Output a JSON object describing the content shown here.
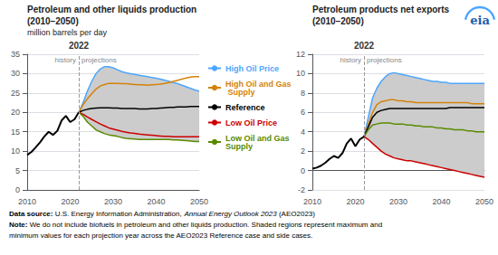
{
  "chart_data": [
    {
      "type": "line",
      "title": "Petroleum and other liquids production",
      "subtitle": "(2010–2050)",
      "ylabel": "million barrels per day",
      "xlim": [
        2010,
        2050
      ],
      "xticks": [
        2010,
        2020,
        2030,
        2040,
        2050
      ],
      "ylim": [
        0,
        35
      ],
      "yticks": [
        0,
        5,
        10,
        15,
        20,
        25,
        30,
        35
      ],
      "grid": true,
      "shade": {
        "color": "#CCCCCC",
        "between": [
          "High Oil Price",
          "Low Oil and Gas Supply"
        ]
      },
      "vline": {
        "x": 2022,
        "label": "2022",
        "left_label": "history",
        "right_label": "projections",
        "color": "#999999",
        "line_style": "dashed"
      },
      "series": [
        {
          "name": "High Oil Price",
          "color": "#4DA6FF",
          "x": [
            2022,
            2023,
            2024,
            2025,
            2026,
            2027,
            2028,
            2029,
            2030,
            2031,
            2032,
            2033,
            2034,
            2035,
            2036,
            2037,
            2038,
            2039,
            2040,
            2041,
            2042,
            2043,
            2044,
            2045,
            2046,
            2047,
            2048,
            2049,
            2050
          ],
          "values": [
            20.0,
            22.5,
            25.5,
            28.0,
            30.0,
            31.2,
            31.8,
            31.8,
            31.5,
            31.0,
            30.5,
            30.2,
            30.0,
            29.8,
            29.6,
            29.4,
            29.2,
            29.0,
            28.8,
            28.6,
            28.3,
            28.0,
            27.7,
            27.4,
            27.0,
            26.6,
            26.2,
            25.8,
            25.5
          ]
        },
        {
          "name": "High Oil and Gas Supply",
          "color": "#D4820A",
          "x": [
            2022,
            2023,
            2024,
            2025,
            2026,
            2027,
            2028,
            2029,
            2030,
            2031,
            2032,
            2033,
            2034,
            2035,
            2036,
            2037,
            2038,
            2039,
            2040,
            2041,
            2042,
            2043,
            2044,
            2045,
            2046,
            2047,
            2048,
            2049,
            2050
          ],
          "values": [
            20.0,
            22.0,
            23.5,
            24.8,
            26.0,
            26.8,
            27.2,
            27.5,
            27.5,
            27.5,
            27.4,
            27.4,
            27.3,
            27.2,
            27.1,
            27.1,
            27.0,
            27.1,
            27.2,
            27.3,
            27.5,
            27.7,
            28.0,
            28.3,
            28.6,
            28.9,
            29.1,
            29.2,
            29.2
          ]
        },
        {
          "name": "Reference",
          "color": "#000000",
          "x": [
            2022,
            2023,
            2024,
            2025,
            2026,
            2027,
            2028,
            2029,
            2030,
            2031,
            2032,
            2033,
            2034,
            2035,
            2036,
            2037,
            2038,
            2039,
            2040,
            2041,
            2042,
            2043,
            2044,
            2045,
            2046,
            2047,
            2048,
            2049,
            2050
          ],
          "values": [
            20.0,
            20.5,
            20.8,
            21.0,
            21.1,
            21.2,
            21.2,
            21.2,
            21.1,
            21.1,
            21.0,
            21.0,
            21.0,
            21.0,
            20.9,
            20.9,
            20.9,
            21.0,
            21.0,
            21.1,
            21.2,
            21.3,
            21.3,
            21.4,
            21.4,
            21.4,
            21.5,
            21.5,
            21.5
          ]
        },
        {
          "name": "Low Oil Price",
          "color": "#CC0000",
          "x": [
            2022,
            2023,
            2024,
            2025,
            2026,
            2027,
            2028,
            2029,
            2030,
            2031,
            2032,
            2033,
            2034,
            2035,
            2036,
            2037,
            2038,
            2039,
            2040,
            2041,
            2042,
            2043,
            2044,
            2045,
            2046,
            2047,
            2048,
            2049,
            2050
          ],
          "values": [
            20.0,
            19.5,
            18.8,
            18.2,
            17.6,
            17.0,
            16.5,
            16.0,
            15.7,
            15.4,
            15.1,
            14.9,
            14.7,
            14.6,
            14.4,
            14.3,
            14.2,
            14.1,
            14.0,
            13.9,
            13.8,
            13.8,
            13.7,
            13.7,
            13.7,
            13.7,
            13.7,
            13.7,
            13.7
          ]
        },
        {
          "name": "Low Oil and Gas Supply",
          "color": "#5A8A00",
          "x": [
            2022,
            2023,
            2024,
            2025,
            2026,
            2027,
            2028,
            2029,
            2030,
            2031,
            2032,
            2033,
            2034,
            2035,
            2036,
            2037,
            2038,
            2039,
            2040,
            2041,
            2042,
            2043,
            2044,
            2045,
            2046,
            2047,
            2048,
            2049,
            2050
          ],
          "values": [
            20.0,
            19.0,
            17.5,
            16.5,
            15.5,
            15.0,
            14.5,
            14.2,
            14.0,
            13.8,
            13.5,
            13.3,
            13.2,
            13.1,
            13.0,
            13.0,
            13.0,
            13.0,
            13.0,
            13.0,
            13.0,
            13.0,
            12.9,
            12.9,
            12.8,
            12.7,
            12.6,
            12.5,
            12.5
          ]
        },
        {
          "color": "#000000",
          "x": [
            2010,
            2011,
            2012,
            2013,
            2014,
            2015,
            2016,
            2017,
            2018,
            2019,
            2020,
            2021,
            2022
          ],
          "values": [
            9.0,
            9.8,
            11.0,
            12.3,
            13.8,
            15.0,
            14.2,
            15.2,
            17.9,
            19.1,
            17.5,
            18.2,
            20.0
          ]
        }
      ]
    },
    {
      "type": "line",
      "title": "Petroleum products net exports",
      "subtitle": "(2010–2050)",
      "xlim": [
        2010,
        2050
      ],
      "xticks": [
        2010,
        2020,
        2030,
        2040,
        2050
      ],
      "ylim": [
        -2,
        12
      ],
      "yticks": [
        -2,
        0,
        2,
        4,
        6,
        8,
        10,
        12
      ],
      "grid": true,
      "shade": {
        "color": "#CCCCCC",
        "between": [
          "High Oil Price",
          "Low Oil Price"
        ]
      },
      "vline": {
        "x": 2022,
        "label": "2022",
        "left_label": "history",
        "right_label": "projections",
        "color": "#999999",
        "line_style": "dashed"
      },
      "series": [
        {
          "name": "High Oil Price",
          "color": "#4DA6FF",
          "x": [
            2022,
            2023,
            2024,
            2025,
            2026,
            2027,
            2028,
            2029,
            2030,
            2031,
            2032,
            2033,
            2034,
            2035,
            2036,
            2037,
            2038,
            2039,
            2040,
            2041,
            2042,
            2043,
            2044,
            2045,
            2046,
            2047,
            2048,
            2049,
            2050
          ],
          "values": [
            3.5,
            5.5,
            7.5,
            8.5,
            9.2,
            9.7,
            10.0,
            10.1,
            10.0,
            9.9,
            9.8,
            9.7,
            9.6,
            9.5,
            9.4,
            9.3,
            9.2,
            9.2,
            9.1,
            9.1,
            9.0,
            9.0,
            9.0,
            9.0,
            9.0,
            9.0,
            9.0,
            9.0,
            9.0
          ]
        },
        {
          "name": "High Oil and Gas Supply",
          "color": "#D4820A",
          "x": [
            2022,
            2023,
            2024,
            2025,
            2026,
            2027,
            2028,
            2029,
            2030,
            2031,
            2032,
            2033,
            2034,
            2035,
            2036,
            2037,
            2038,
            2039,
            2040,
            2041,
            2042,
            2043,
            2044,
            2045,
            2046,
            2047,
            2048,
            2049,
            2050
          ],
          "values": [
            3.5,
            4.8,
            6.0,
            6.8,
            7.1,
            7.2,
            7.3,
            7.3,
            7.2,
            7.2,
            7.1,
            7.1,
            7.0,
            7.0,
            7.0,
            7.0,
            7.0,
            7.0,
            7.0,
            7.0,
            7.0,
            7.0,
            7.0,
            7.0,
            7.0,
            6.9,
            6.9,
            6.9,
            6.9
          ]
        },
        {
          "name": "Reference",
          "color": "#000000",
          "x": [
            2022,
            2023,
            2024,
            2025,
            2026,
            2027,
            2028,
            2029,
            2030,
            2031,
            2032,
            2033,
            2034,
            2035,
            2036,
            2037,
            2038,
            2039,
            2040,
            2041,
            2042,
            2043,
            2044,
            2045,
            2046,
            2047,
            2048,
            2049,
            2050
          ],
          "values": [
            3.5,
            4.5,
            5.5,
            6.0,
            6.2,
            6.3,
            6.4,
            6.4,
            6.4,
            6.4,
            6.4,
            6.4,
            6.4,
            6.4,
            6.4,
            6.4,
            6.4,
            6.4,
            6.4,
            6.4,
            6.5,
            6.5,
            6.5,
            6.5,
            6.5,
            6.5,
            6.5,
            6.5,
            6.5
          ]
        },
        {
          "name": "Low Oil and Gas Supply",
          "color": "#5A8A00",
          "x": [
            2022,
            2023,
            2024,
            2025,
            2026,
            2027,
            2028,
            2029,
            2030,
            2031,
            2032,
            2033,
            2034,
            2035,
            2036,
            2037,
            2038,
            2039,
            2040,
            2041,
            2042,
            2043,
            2044,
            2045,
            2046,
            2047,
            2048,
            2049,
            2050
          ],
          "values": [
            3.5,
            4.2,
            4.7,
            4.8,
            4.9,
            4.9,
            4.9,
            4.8,
            4.8,
            4.8,
            4.7,
            4.7,
            4.6,
            4.6,
            4.5,
            4.5,
            4.5,
            4.4,
            4.4,
            4.3,
            4.3,
            4.2,
            4.2,
            4.2,
            4.1,
            4.1,
            4.0,
            4.0,
            4.0
          ]
        },
        {
          "name": "Low Oil Price",
          "color": "#CC0000",
          "x": [
            2022,
            2023,
            2024,
            2025,
            2026,
            2027,
            2028,
            2029,
            2030,
            2031,
            2032,
            2033,
            2034,
            2035,
            2036,
            2037,
            2038,
            2039,
            2040,
            2041,
            2042,
            2043,
            2044,
            2045,
            2046,
            2047,
            2048,
            2049,
            2050
          ],
          "values": [
            3.5,
            3.2,
            2.8,
            2.4,
            2.0,
            1.7,
            1.5,
            1.3,
            1.2,
            1.1,
            1.0,
            1.0,
            0.9,
            0.8,
            0.7,
            0.6,
            0.5,
            0.4,
            0.3,
            0.2,
            0.1,
            0.0,
            -0.1,
            -0.2,
            -0.3,
            -0.4,
            -0.5,
            -0.6,
            -0.7
          ]
        },
        {
          "color": "#000000",
          "x": [
            2010,
            2011,
            2012,
            2013,
            2014,
            2015,
            2016,
            2017,
            2018,
            2019,
            2020,
            2021,
            2022
          ],
          "values": [
            0.2,
            0.3,
            0.5,
            0.8,
            1.2,
            1.5,
            1.3,
            1.8,
            2.8,
            3.3,
            2.5,
            3.2,
            3.5
          ]
        }
      ]
    }
  ],
  "legend": "center",
  "logo": {
    "text": "eia",
    "color": "#1a5dad",
    "arc_color": "#4DA6FF"
  },
  "notes": [
    [
      {
        "text": "Data source:",
        "style": "bold"
      },
      {
        "text": "U.S. Energy Information Administration,"
      },
      {
        "text": "Annual Energy Outlook 2023",
        "style": "italic",
        "color": "#1a5dad"
      },
      {
        "text": "(AEO2023)"
      }
    ],
    [
      {
        "text": "Note:",
        "style": "bold"
      },
      {
        "text": "We do not include biofuels in petroleum and other liquids production. Shaded regions represent maximum and"
      }
    ],
    [
      {
        "text": "minimum values for each projection year across the AEO2023 Reference case and side cases."
      }
    ]
  ]
}
